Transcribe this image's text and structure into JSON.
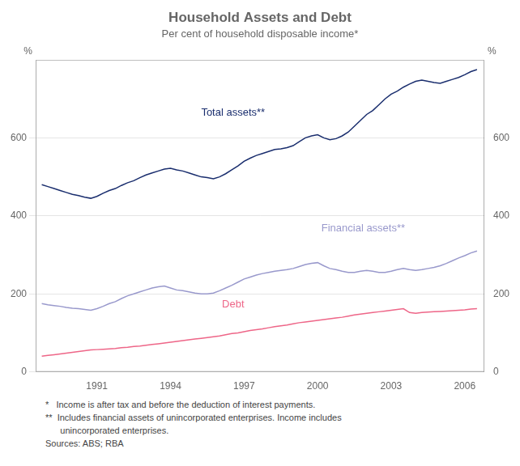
{
  "chart_data": {
    "type": "line",
    "title": "Household Assets and Debt",
    "subtitle": "Per cent of household disposable income*",
    "ylabel": "%",
    "y2label": "%",
    "footnotes": [
      "*   Income is after tax and before the deduction of interest payments.",
      "**  Includes financial assets of unincorporated enterprises. Income includes",
      "      unincorporated enterprises.",
      "Sources: ABS; RBA"
    ],
    "xlim": [
      1988.5,
      2006.8
    ],
    "xticks": [
      1991,
      1994,
      1997,
      2000,
      2003,
      2006
    ],
    "ylim": [
      0,
      800
    ],
    "yticks": [
      0,
      200,
      400,
      600
    ],
    "y2lim": [
      0,
      800
    ],
    "y2ticks": [
      0,
      200,
      400,
      600
    ],
    "grid": true,
    "x": [
      1988.75,
      1989.0,
      1989.25,
      1989.5,
      1989.75,
      1990.0,
      1990.25,
      1990.5,
      1990.75,
      1991.0,
      1991.25,
      1991.5,
      1991.75,
      1992.0,
      1992.25,
      1992.5,
      1992.75,
      1993.0,
      1993.25,
      1993.5,
      1993.75,
      1994.0,
      1994.25,
      1994.5,
      1994.75,
      1995.0,
      1995.25,
      1995.5,
      1995.75,
      1996.0,
      1996.25,
      1996.5,
      1996.75,
      1997.0,
      1997.25,
      1997.5,
      1997.75,
      1998.0,
      1998.25,
      1998.5,
      1998.75,
      1999.0,
      1999.25,
      1999.5,
      1999.75,
      2000.0,
      2000.25,
      2000.5,
      2000.75,
      2001.0,
      2001.25,
      2001.5,
      2001.75,
      2002.0,
      2002.25,
      2002.5,
      2002.75,
      2003.0,
      2003.25,
      2003.5,
      2003.75,
      2004.0,
      2004.25,
      2004.5,
      2004.75,
      2005.0,
      2005.25,
      2005.5,
      2005.75,
      2006.0,
      2006.25,
      2006.5
    ],
    "series": [
      {
        "name": "Total assets**",
        "color": "#1a2e6e",
        "values": [
          480,
          475,
          470,
          465,
          460,
          455,
          452,
          448,
          445,
          450,
          458,
          465,
          470,
          478,
          485,
          490,
          498,
          505,
          510,
          515,
          520,
          522,
          518,
          515,
          510,
          505,
          500,
          498,
          495,
          500,
          508,
          518,
          528,
          540,
          548,
          555,
          560,
          565,
          570,
          572,
          575,
          580,
          590,
          600,
          605,
          608,
          600,
          595,
          598,
          605,
          615,
          630,
          645,
          660,
          670,
          685,
          700,
          712,
          720,
          730,
          738,
          745,
          748,
          745,
          742,
          740,
          745,
          750,
          755,
          762,
          770,
          775
        ]
      },
      {
        "name": "Financial assets**",
        "color": "#9999cc",
        "values": [
          175,
          172,
          170,
          168,
          165,
          163,
          162,
          160,
          158,
          162,
          168,
          175,
          180,
          188,
          195,
          200,
          205,
          210,
          215,
          218,
          220,
          215,
          210,
          208,
          205,
          202,
          200,
          200,
          202,
          208,
          215,
          222,
          230,
          238,
          243,
          248,
          252,
          255,
          258,
          260,
          262,
          265,
          270,
          275,
          278,
          280,
          272,
          265,
          262,
          258,
          255,
          255,
          258,
          260,
          258,
          255,
          255,
          258,
          262,
          265,
          262,
          260,
          262,
          265,
          268,
          272,
          278,
          285,
          292,
          298,
          305,
          310
        ]
      },
      {
        "name": "Debt",
        "color": "#ee6688",
        "values": [
          40,
          42,
          44,
          46,
          48,
          50,
          52,
          54,
          56,
          57,
          58,
          59,
          60,
          62,
          63,
          65,
          66,
          68,
          70,
          72,
          74,
          76,
          78,
          80,
          82,
          84,
          86,
          88,
          90,
          92,
          95,
          98,
          100,
          103,
          106,
          108,
          110,
          113,
          116,
          118,
          120,
          123,
          126,
          128,
          130,
          132,
          134,
          136,
          138,
          140,
          143,
          146,
          148,
          150,
          152,
          154,
          156,
          158,
          160,
          162,
          152,
          150,
          152,
          153,
          154,
          155,
          156,
          157,
          158,
          159,
          161,
          162
        ]
      }
    ]
  }
}
